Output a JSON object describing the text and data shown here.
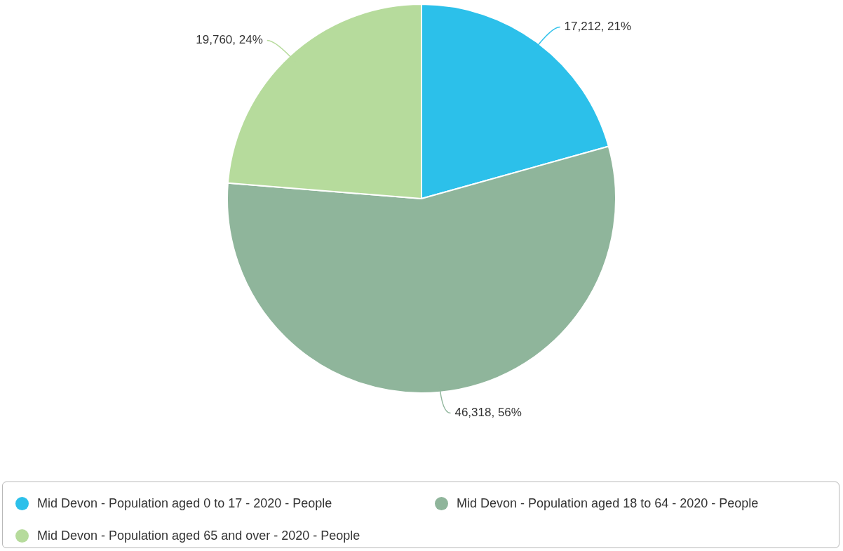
{
  "chart_data": {
    "type": "pie",
    "categories": [
      "Mid Devon - Population aged 0 to 17 - 2020 - People",
      "Mid Devon - Population aged 18 to 64 - 2020 - People",
      "Mid Devon - Population aged 65 and over - 2020 - People"
    ],
    "values": [
      17212,
      46318,
      19760
    ],
    "colors": [
      "#2cc0ea",
      "#8fb59b",
      "#b6db9c"
    ],
    "value_labels": [
      "17,212, 21%",
      "46,318, 56%",
      "19,760, 24%"
    ],
    "legend": "bottom"
  }
}
